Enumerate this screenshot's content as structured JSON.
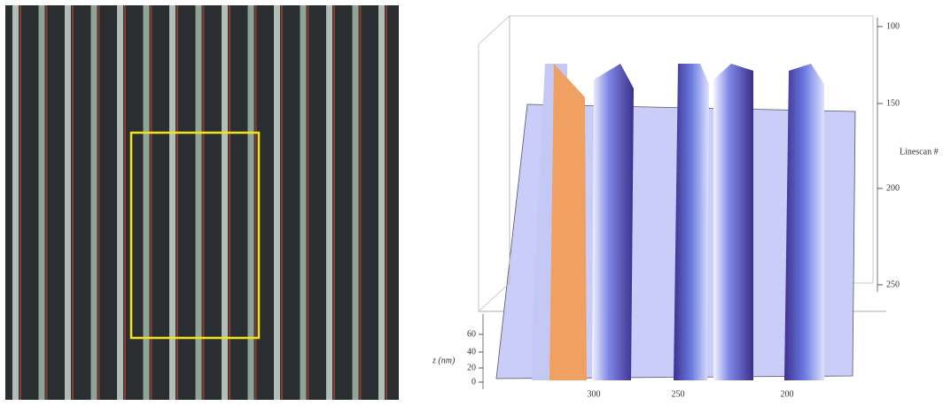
{
  "linescan_axis": {
    "label": "Linescan #",
    "ticks": [
      100,
      150,
      200,
      250
    ]
  },
  "z_axis": {
    "label": "z (nm)",
    "ticks": [
      0,
      20,
      40,
      60
    ]
  },
  "x_axis": {
    "ticks": [
      300,
      250,
      200
    ]
  }
}
